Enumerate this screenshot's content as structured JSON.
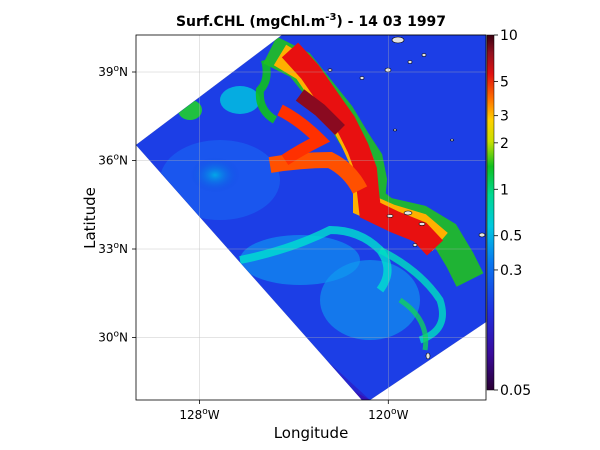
{
  "map": {
    "title_main": "Surf.CHL (mgChl.m",
    "title_exp": "-3",
    "title_tail": ") - 14 03 1997",
    "xlabel": "Longitude",
    "ylabel": "Latitude",
    "lon_ticks": [
      {
        "value": -128,
        "label": "128",
        "unit": "oW"
      },
      {
        "value": -120,
        "label": "120",
        "unit": "oW"
      }
    ],
    "lat_ticks": [
      {
        "value": 39,
        "label": "39",
        "unit": "oN"
      },
      {
        "value": 36,
        "label": "36",
        "unit": "oN"
      },
      {
        "value": 33,
        "label": "33",
        "unit": "oN"
      },
      {
        "value": 30,
        "label": "30",
        "unit": "oN"
      }
    ],
    "grid": true,
    "land_color": "#e4e4e4",
    "ocean_outside_domain": "#ffffff",
    "colormap": "spectral (purple-blue-cyan-green-yellow-orange-red-dark red)",
    "scale": "log"
  },
  "colorbar": {
    "ticks": [
      {
        "value": 10,
        "label": "10"
      },
      {
        "value": 5,
        "label": "5"
      },
      {
        "value": 3,
        "label": "3"
      },
      {
        "value": 2,
        "label": "2"
      },
      {
        "value": 1,
        "label": "1"
      },
      {
        "value": 0.5,
        "label": "0.5"
      },
      {
        "value": 0.3,
        "label": "0.3"
      },
      {
        "value": 0.05,
        "label": "0.05"
      }
    ],
    "range": [
      0.05,
      10
    ],
    "scale": "log"
  }
}
